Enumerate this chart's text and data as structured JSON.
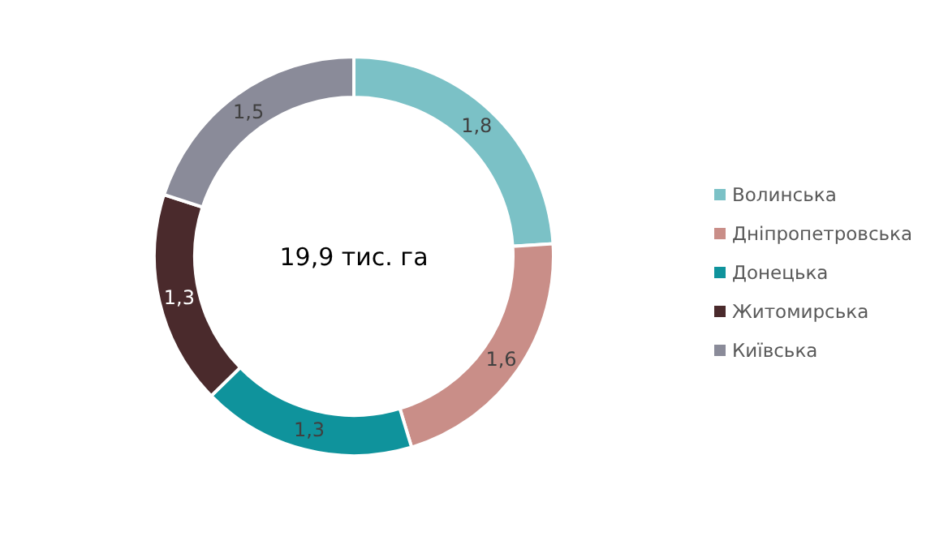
{
  "chart_data": {
    "type": "donut",
    "categories": [
      "Волинська",
      "Дніпропетровська",
      "Донецька",
      "Житомирська",
      "Київська"
    ],
    "values": [
      1.8,
      1.6,
      1.3,
      1.3,
      1.5
    ],
    "colors": [
      "#7bc1c6",
      "#c98e88",
      "#0f939c",
      "#4a2a2c",
      "#8a8b99"
    ],
    "value_labels": [
      "1,8",
      "1,6",
      "1,3",
      "1,3",
      "1,5"
    ],
    "annotations": [
      "19,9 тис. га"
    ],
    "legend": "right"
  }
}
